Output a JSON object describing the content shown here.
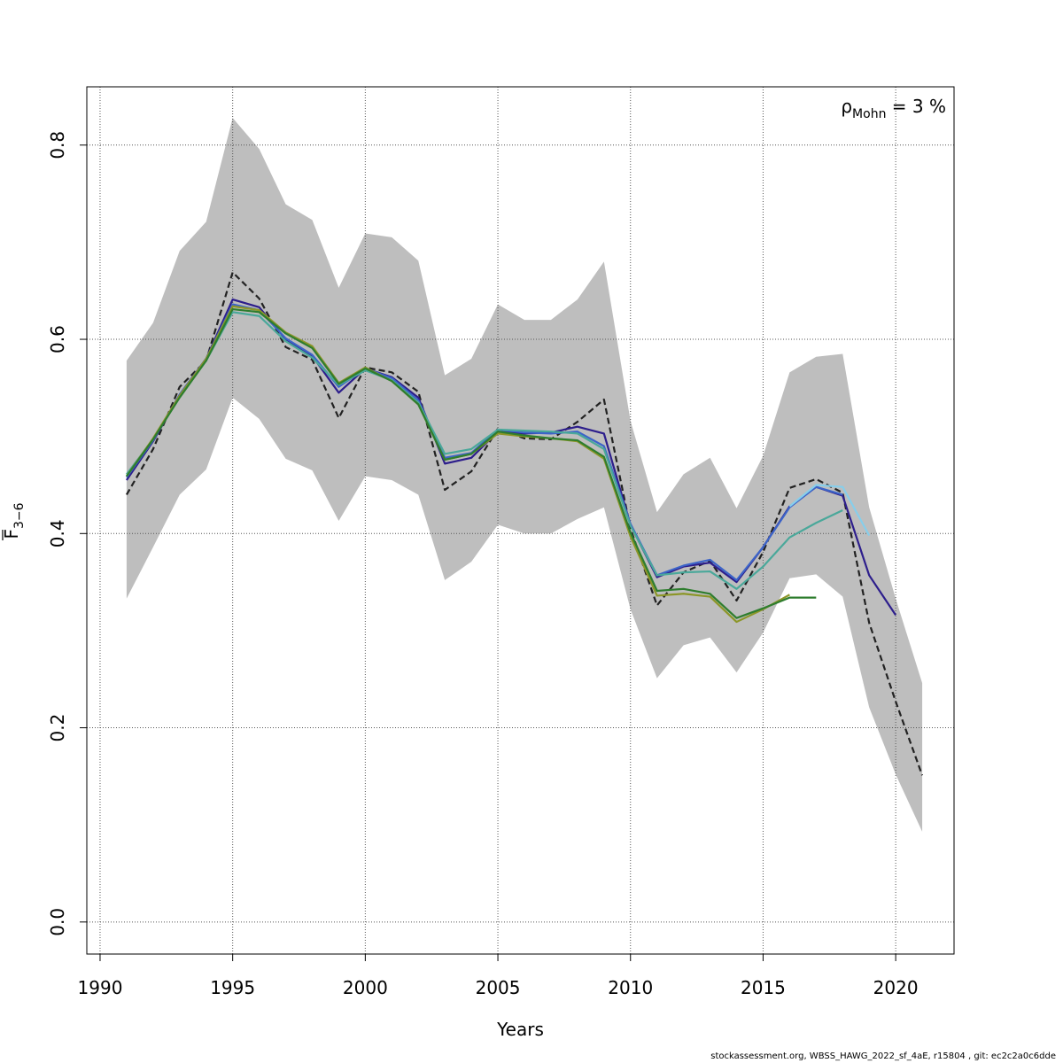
{
  "chart_data": {
    "type": "line",
    "xlabel": "Years",
    "ylabel": "F",
    "ylabel_sub": "3−6",
    "xlim": [
      1989.5,
      2022.2
    ],
    "ylim": [
      -0.033,
      0.86
    ],
    "x_ticks": [
      1990,
      1995,
      2000,
      2005,
      2010,
      2015,
      2020
    ],
    "y_ticks": [
      0.0,
      0.2,
      0.4,
      0.6,
      0.8
    ],
    "y_tick_labels": [
      "0.0",
      "0.2",
      "0.4",
      "0.6",
      "0.8"
    ],
    "grid": true,
    "annotation": {
      "symbol": "ρ",
      "sub": "Mohn",
      "text": " = 3 %"
    },
    "confidence_band": {
      "color": "#bebebe",
      "x": [
        1991,
        1992,
        1993,
        1994,
        1995,
        1996,
        1997,
        1998,
        1999,
        2000,
        2001,
        2002,
        2003,
        2004,
        2005,
        2006,
        2007,
        2008,
        2009,
        2010,
        2011,
        2012,
        2013,
        2014,
        2015,
        2016,
        2017,
        2018,
        2019,
        2020,
        2021
      ],
      "upper": [
        0.578,
        0.617,
        0.691,
        0.721,
        0.828,
        0.796,
        0.739,
        0.723,
        0.653,
        0.709,
        0.705,
        0.681,
        0.563,
        0.58,
        0.636,
        0.62,
        0.62,
        0.641,
        0.68,
        0.516,
        0.422,
        0.461,
        0.478,
        0.426,
        0.48,
        0.566,
        0.582,
        0.585,
        0.427,
        0.333,
        0.246
      ],
      "lower": [
        0.333,
        0.386,
        0.44,
        0.466,
        0.54,
        0.518,
        0.477,
        0.465,
        0.413,
        0.459,
        0.455,
        0.44,
        0.352,
        0.371,
        0.409,
        0.4,
        0.4,
        0.415,
        0.427,
        0.322,
        0.251,
        0.285,
        0.293,
        0.257,
        0.298,
        0.354,
        0.358,
        0.335,
        0.221,
        0.152,
        0.093
      ]
    },
    "series": [
      {
        "color": "#222222",
        "dashed": true,
        "x": [
          1991,
          1992,
          1993,
          1994,
          1995,
          1996,
          1997,
          1998,
          1999,
          2000,
          2001,
          2002,
          2003,
          2004,
          2005,
          2006,
          2007,
          2008,
          2009,
          2010,
          2011,
          2012,
          2013,
          2014,
          2015,
          2016,
          2017,
          2018,
          2019,
          2020,
          2021
        ],
        "y": [
          0.44,
          0.487,
          0.551,
          0.578,
          0.669,
          0.642,
          0.592,
          0.579,
          0.519,
          0.571,
          0.566,
          0.546,
          0.445,
          0.464,
          0.508,
          0.498,
          0.497,
          0.515,
          0.538,
          0.405,
          0.326,
          0.36,
          0.372,
          0.331,
          0.381,
          0.447,
          0.456,
          0.442,
          0.308,
          0.227,
          0.151
        ]
      },
      {
        "color": "#2d1e8c",
        "dashed": false,
        "x": [
          1991,
          1992,
          1993,
          1994,
          1995,
          1996,
          1997,
          1998,
          1999,
          2000,
          2001,
          2002,
          2003,
          2004,
          2005,
          2006,
          2007,
          2008,
          2009,
          2010,
          2011,
          2012,
          2013,
          2014,
          2015,
          2016,
          2017,
          2018,
          2019,
          2020
        ],
        "y": [
          0.455,
          0.495,
          0.543,
          0.58,
          0.641,
          0.633,
          0.6,
          0.583,
          0.545,
          0.57,
          0.561,
          0.54,
          0.472,
          0.478,
          0.505,
          0.503,
          0.504,
          0.51,
          0.503,
          0.409,
          0.355,
          0.366,
          0.37,
          0.35,
          0.386,
          0.428,
          0.448,
          0.439,
          0.357,
          0.316
        ]
      },
      {
        "color": "#3c64c8",
        "dashed": false,
        "x": [
          1991,
          1992,
          1993,
          1994,
          1995,
          1996,
          1997,
          1998,
          1999,
          2000,
          2001,
          2002,
          2003,
          2004,
          2005,
          2006,
          2007,
          2008,
          2009,
          2010,
          2011,
          2012,
          2013,
          2014,
          2015,
          2016,
          2017,
          2018
        ],
        "y": [
          0.458,
          0.496,
          0.543,
          0.58,
          0.636,
          0.63,
          0.601,
          0.584,
          0.551,
          0.57,
          0.56,
          0.537,
          0.478,
          0.483,
          0.507,
          0.504,
          0.503,
          0.505,
          0.49,
          0.41,
          0.357,
          0.367,
          0.373,
          0.352,
          0.386,
          0.427,
          0.448,
          0.44
        ]
      },
      {
        "color": "#87ceeb",
        "dashed": false,
        "x": [
          2016,
          2017,
          2018,
          2019
        ],
        "y": [
          0.428,
          0.45,
          0.448,
          0.398
        ]
      },
      {
        "color": "#4aa89a",
        "dashed": false,
        "x": [
          1991,
          1992,
          1993,
          1994,
          1995,
          1996,
          1997,
          1998,
          1999,
          2000,
          2001,
          2002,
          2003,
          2004,
          2005,
          2006,
          2007,
          2008,
          2009,
          2010,
          2011,
          2012,
          2013,
          2014,
          2015,
          2016,
          2017,
          2018
        ],
        "y": [
          0.461,
          0.497,
          0.541,
          0.578,
          0.628,
          0.624,
          0.598,
          0.581,
          0.553,
          0.568,
          0.558,
          0.535,
          0.482,
          0.487,
          0.507,
          0.506,
          0.505,
          0.503,
          0.487,
          0.408,
          0.357,
          0.36,
          0.361,
          0.343,
          0.366,
          0.396,
          0.411,
          0.424
        ]
      },
      {
        "color": "#8c9628",
        "dashed": false,
        "x": [
          1991,
          1992,
          1993,
          1994,
          1995,
          1996,
          1997,
          1998,
          1999,
          2000,
          2001,
          2002,
          2003,
          2004,
          2005,
          2006,
          2007,
          2008,
          2009,
          2010,
          2011,
          2012,
          2013,
          2014,
          2015,
          2016
        ],
        "y": [
          0.459,
          0.498,
          0.542,
          0.58,
          0.634,
          0.63,
          0.607,
          0.593,
          0.555,
          0.571,
          0.557,
          0.533,
          0.476,
          0.482,
          0.503,
          0.5,
          0.498,
          0.495,
          0.477,
          0.397,
          0.336,
          0.338,
          0.335,
          0.309,
          0.322,
          0.337
        ]
      },
      {
        "color": "#2e7d2e",
        "dashed": false,
        "x": [
          1991,
          1992,
          1993,
          1994,
          1995,
          1996,
          1997,
          1998,
          1999,
          2000,
          2001,
          2002,
          2003,
          2004,
          2005,
          2006,
          2007,
          2008,
          2009,
          2010,
          2011,
          2012,
          2013,
          2014,
          2015,
          2016,
          2017
        ],
        "y": [
          0.459,
          0.497,
          0.54,
          0.578,
          0.631,
          0.628,
          0.606,
          0.591,
          0.554,
          0.57,
          0.557,
          0.533,
          0.476,
          0.482,
          0.505,
          0.501,
          0.498,
          0.496,
          0.479,
          0.401,
          0.341,
          0.343,
          0.338,
          0.313,
          0.323,
          0.334,
          0.334
        ]
      }
    ]
  },
  "footer": "stockassessment.org, WBSS_HAWG_2022_sf_4aE, r15804 , git: ec2c2a0c6dde"
}
